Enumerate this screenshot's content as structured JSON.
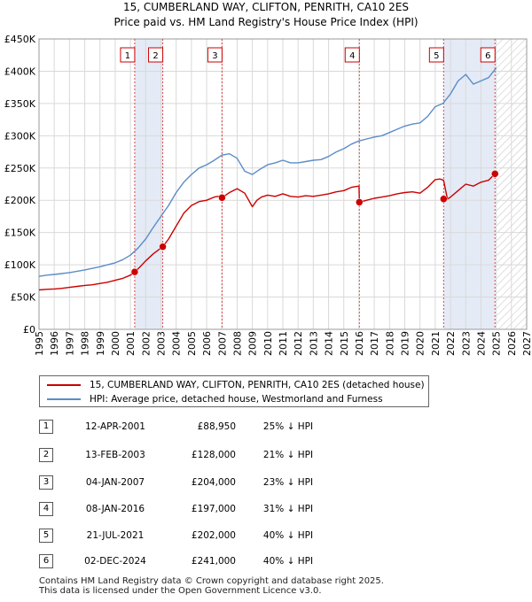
{
  "chart_data": {
    "type": "line",
    "title": "15, CUMBERLAND WAY, CLIFTON, PENRITH, CA10 2ES",
    "subtitle": "Price paid vs. HM Land Registry's House Price Index (HPI)",
    "xlim": [
      1995,
      2027
    ],
    "ylim": [
      0,
      450000
    ],
    "x_ticks": [
      1995,
      1996,
      1997,
      1998,
      1999,
      2000,
      2001,
      2002,
      2003,
      2004,
      2005,
      2006,
      2007,
      2008,
      2009,
      2010,
      2011,
      2012,
      2013,
      2014,
      2015,
      2016,
      2017,
      2018,
      2019,
      2020,
      2021,
      2022,
      2023,
      2024,
      2025,
      2026,
      2027
    ],
    "y_ticks": [
      {
        "value": 0,
        "label": "£0"
      },
      {
        "value": 50000,
        "label": "£50K"
      },
      {
        "value": 100000,
        "label": "£100K"
      },
      {
        "value": 150000,
        "label": "£150K"
      },
      {
        "value": 200000,
        "label": "£200K"
      },
      {
        "value": 250000,
        "label": "£250K"
      },
      {
        "value": 300000,
        "label": "£300K"
      },
      {
        "value": 350000,
        "label": "£350K"
      },
      {
        "value": 400000,
        "label": "£400K"
      },
      {
        "value": 450000,
        "label": "£450K"
      }
    ],
    "grid": true,
    "hatch_after": 2025.0,
    "series": [
      {
        "name": "15, CUMBERLAND WAY, CLIFTON, PENRITH, CA10 2ES (detached house)",
        "color": "#cc0000",
        "x": [
          1995.0,
          1995.5,
          1996.0,
          1996.5,
          1997.0,
          1997.5,
          1998.0,
          1998.5,
          1999.0,
          1999.5,
          2000.0,
          2000.5,
          2001.0,
          2001.28,
          2001.6,
          2002.0,
          2002.5,
          2003.0,
          2003.12,
          2003.5,
          2004.0,
          2004.5,
          2005.0,
          2005.5,
          2006.0,
          2006.5,
          2007.0,
          2007.01,
          2007.5,
          2008.0,
          2008.5,
          2009.0,
          2009.3,
          2009.6,
          2010.0,
          2010.5,
          2011.0,
          2011.5,
          2012.0,
          2012.5,
          2013.0,
          2013.5,
          2014.0,
          2014.5,
          2015.0,
          2015.5,
          2016.0,
          2016.02,
          2016.5,
          2017.0,
          2017.5,
          2018.0,
          2018.5,
          2019.0,
          2019.5,
          2020.0,
          2020.5,
          2021.0,
          2021.3,
          2021.55,
          2021.8,
          2022.0,
          2022.5,
          2023.0,
          2023.5,
          2024.0,
          2024.5,
          2024.92,
          2025.0
        ],
        "values": [
          61000,
          62000,
          62500,
          63500,
          65000,
          66500,
          68000,
          69000,
          71000,
          73000,
          76000,
          79000,
          84000,
          88950,
          96000,
          106000,
          117000,
          126000,
          128000,
          140000,
          160000,
          180000,
          192000,
          198000,
          200000,
          205000,
          207000,
          204000,
          212000,
          218000,
          211000,
          190000,
          200000,
          205000,
          208000,
          206000,
          210000,
          206000,
          205000,
          207000,
          206000,
          208000,
          210000,
          213000,
          215000,
          220000,
          222000,
          197000,
          200000,
          203000,
          205000,
          207000,
          210000,
          212000,
          213000,
          211000,
          220000,
          232000,
          233000,
          231000,
          202000,
          205000,
          215000,
          225000,
          222000,
          228000,
          231000,
          241000,
          244000
        ]
      },
      {
        "name": "HPI: Average price, detached house, Westmorland and Furness",
        "color": "#5b8cc8",
        "x": [
          1995.0,
          1995.5,
          1996.0,
          1996.5,
          1997.0,
          1997.5,
          1998.0,
          1998.5,
          1999.0,
          1999.5,
          2000.0,
          2000.5,
          2001.0,
          2001.5,
          2002.0,
          2002.5,
          2003.0,
          2003.5,
          2004.0,
          2004.5,
          2005.0,
          2005.5,
          2006.0,
          2006.5,
          2007.0,
          2007.5,
          2008.0,
          2008.5,
          2009.0,
          2009.5,
          2010.0,
          2010.5,
          2011.0,
          2011.5,
          2012.0,
          2012.5,
          2013.0,
          2013.5,
          2014.0,
          2014.5,
          2015.0,
          2015.5,
          2016.0,
          2016.5,
          2017.0,
          2017.5,
          2018.0,
          2018.5,
          2019.0,
          2019.5,
          2020.0,
          2020.5,
          2021.0,
          2021.5,
          2022.0,
          2022.5,
          2023.0,
          2023.5,
          2024.0,
          2024.5,
          2025.0
        ],
        "values": [
          82000,
          84000,
          85000,
          86500,
          88000,
          90000,
          92000,
          94500,
          97000,
          100000,
          103000,
          108000,
          115000,
          126000,
          140000,
          158000,
          175000,
          192000,
          212000,
          228000,
          240000,
          250000,
          255000,
          262000,
          270000,
          272000,
          265000,
          245000,
          240000,
          248000,
          255000,
          258000,
          262000,
          258000,
          258000,
          260000,
          262000,
          263000,
          268000,
          275000,
          280000,
          287000,
          292000,
          295000,
          298000,
          300000,
          305000,
          310000,
          315000,
          318000,
          320000,
          330000,
          345000,
          350000,
          365000,
          385000,
          395000,
          380000,
          385000,
          390000,
          405000
        ]
      }
    ],
    "sales": [
      {
        "id": "1",
        "x": 2001.28,
        "value": 88950
      },
      {
        "id": "2",
        "x": 2003.12,
        "value": 128000
      },
      {
        "id": "3",
        "x": 2007.01,
        "value": 204000
      },
      {
        "id": "4",
        "x": 2016.02,
        "value": 197000
      },
      {
        "id": "5",
        "x": 2021.55,
        "value": 202000
      },
      {
        "id": "6",
        "x": 2024.92,
        "value": 241000
      }
    ],
    "shaded_spans": [
      [
        2001.28,
        2003.12
      ],
      [
        2021.55,
        2024.92
      ]
    ]
  },
  "legend": {
    "items": [
      {
        "label": "15, CUMBERLAND WAY, CLIFTON, PENRITH, CA10 2ES (detached house)",
        "color": "#cc0000"
      },
      {
        "label": "HPI: Average price, detached house, Westmorland and Furness",
        "color": "#5b8cc8"
      }
    ]
  },
  "transactions": [
    {
      "num": "1",
      "date": "12-APR-2001",
      "price": "£88,950",
      "hpi": "25% ↓ HPI"
    },
    {
      "num": "2",
      "date": "13-FEB-2003",
      "price": "£128,000",
      "hpi": "21% ↓ HPI"
    },
    {
      "num": "3",
      "date": "04-JAN-2007",
      "price": "£204,000",
      "hpi": "23% ↓ HPI"
    },
    {
      "num": "4",
      "date": "08-JAN-2016",
      "price": "£197,000",
      "hpi": "31% ↓ HPI"
    },
    {
      "num": "5",
      "date": "21-JUL-2021",
      "price": "£202,000",
      "hpi": "40% ↓ HPI"
    },
    {
      "num": "6",
      "date": "02-DEC-2024",
      "price": "£241,000",
      "hpi": "40% ↓ HPI"
    }
  ],
  "footer": {
    "line1": "Contains HM Land Registry data © Crown copyright and database right 2025.",
    "line2": "This data is licensed under the Open Government Licence v3.0."
  }
}
